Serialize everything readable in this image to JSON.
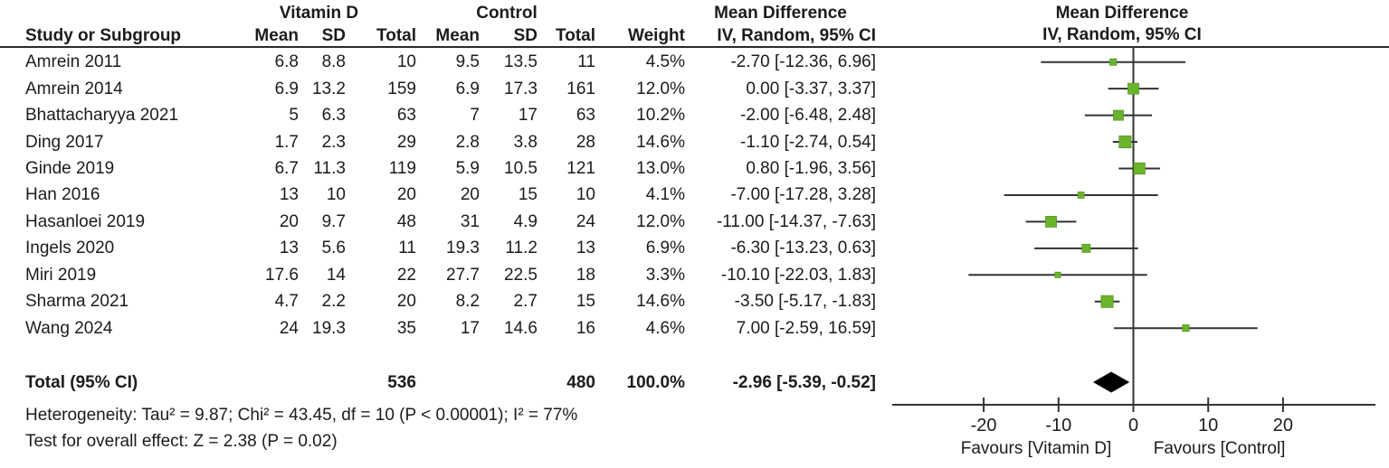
{
  "table": {
    "group_headers": {
      "vitamin_d": "Vitamin D",
      "control": "Control",
      "md_text_col": "Mean Difference",
      "md_plot_col": "Mean Difference"
    },
    "columns": {
      "study": "Study or Subgroup",
      "mean": "Mean",
      "sd": "SD",
      "total": "Total",
      "weight": "Weight",
      "iv_random_text": "IV, Random, 95% CI",
      "iv_random_plot": "IV, Random, 95% CI"
    }
  },
  "chart_data": {
    "type": "forest",
    "effect_measure": "Mean Difference, IV, Random, 95% CI",
    "studies": [
      {
        "name": "Amrein 2011",
        "vd_mean": "6.8",
        "vd_sd": "8.8",
        "vd_total": "10",
        "c_mean": "9.5",
        "c_sd": "13.5",
        "c_total": "11",
        "weight": "4.5%",
        "ci_text": "-2.70 [-12.36, 6.96]",
        "md": -2.7,
        "lo": -12.36,
        "hi": 6.96,
        "w": 4.5
      },
      {
        "name": "Amrein 2014",
        "vd_mean": "6.9",
        "vd_sd": "13.2",
        "vd_total": "159",
        "c_mean": "6.9",
        "c_sd": "17.3",
        "c_total": "161",
        "weight": "12.0%",
        "ci_text": "0.00 [-3.37, 3.37]",
        "md": 0.0,
        "lo": -3.37,
        "hi": 3.37,
        "w": 12.0
      },
      {
        "name": "Bhattacharyya 2021",
        "vd_mean": "5",
        "vd_sd": "6.3",
        "vd_total": "63",
        "c_mean": "7",
        "c_sd": "17",
        "c_total": "63",
        "weight": "10.2%",
        "ci_text": "-2.00 [-6.48, 2.48]",
        "md": -2.0,
        "lo": -6.48,
        "hi": 2.48,
        "w": 10.2
      },
      {
        "name": "Ding 2017",
        "vd_mean": "1.7",
        "vd_sd": "2.3",
        "vd_total": "29",
        "c_mean": "2.8",
        "c_sd": "3.8",
        "c_total": "28",
        "weight": "14.6%",
        "ci_text": "-1.10 [-2.74, 0.54]",
        "md": -1.1,
        "lo": -2.74,
        "hi": 0.54,
        "w": 14.6
      },
      {
        "name": "Ginde 2019",
        "vd_mean": "6.7",
        "vd_sd": "11.3",
        "vd_total": "119",
        "c_mean": "5.9",
        "c_sd": "10.5",
        "c_total": "121",
        "weight": "13.0%",
        "ci_text": "0.80 [-1.96, 3.56]",
        "md": 0.8,
        "lo": -1.96,
        "hi": 3.56,
        "w": 13.0
      },
      {
        "name": "Han 2016",
        "vd_mean": "13",
        "vd_sd": "10",
        "vd_total": "20",
        "c_mean": "20",
        "c_sd": "15",
        "c_total": "10",
        "weight": "4.1%",
        "ci_text": "-7.00 [-17.28, 3.28]",
        "md": -7.0,
        "lo": -17.28,
        "hi": 3.28,
        "w": 4.1
      },
      {
        "name": "Hasanloei 2019",
        "vd_mean": "20",
        "vd_sd": "9.7",
        "vd_total": "48",
        "c_mean": "31",
        "c_sd": "4.9",
        "c_total": "24",
        "weight": "12.0%",
        "ci_text": "-11.00 [-14.37, -7.63]",
        "md": -11.0,
        "lo": -14.37,
        "hi": -7.63,
        "w": 12.0
      },
      {
        "name": "Ingels 2020",
        "vd_mean": "13",
        "vd_sd": "5.6",
        "vd_total": "11",
        "c_mean": "19.3",
        "c_sd": "11.2",
        "c_total": "13",
        "weight": "6.9%",
        "ci_text": "-6.30 [-13.23, 0.63]",
        "md": -6.3,
        "lo": -13.23,
        "hi": 0.63,
        "w": 6.9
      },
      {
        "name": "Miri 2019",
        "vd_mean": "17.6",
        "vd_sd": "14",
        "vd_total": "22",
        "c_mean": "27.7",
        "c_sd": "22.5",
        "c_total": "18",
        "weight": "3.3%",
        "ci_text": "-10.10 [-22.03, 1.83]",
        "md": -10.1,
        "lo": -22.03,
        "hi": 1.83,
        "w": 3.3
      },
      {
        "name": "Sharma 2021",
        "vd_mean": "4.7",
        "vd_sd": "2.2",
        "vd_total": "20",
        "c_mean": "8.2",
        "c_sd": "2.7",
        "c_total": "15",
        "weight": "14.6%",
        "ci_text": "-3.50 [-5.17, -1.83]",
        "md": -3.5,
        "lo": -5.17,
        "hi": -1.83,
        "w": 14.6
      },
      {
        "name": "Wang 2024",
        "vd_mean": "24",
        "vd_sd": "19.3",
        "vd_total": "35",
        "c_mean": "17",
        "c_sd": "14.6",
        "c_total": "16",
        "weight": "4.6%",
        "ci_text": "7.00 [-2.59, 16.59]",
        "md": 7.0,
        "lo": -2.59,
        "hi": 16.59,
        "w": 4.6
      }
    ],
    "total": {
      "label": "Total (95% CI)",
      "vd_total": "536",
      "c_total": "480",
      "weight": "100.0%",
      "ci_text": "-2.96 [-5.39, -0.52]",
      "md": -2.955,
      "lo": -5.39,
      "hi": -0.52
    },
    "heterogeneity": "Heterogeneity: Tau² = 9.87; Chi² = 43.45, df = 10 (P < 0.00001); I² = 77%",
    "overall_effect": "Test for overall effect: Z = 2.38 (P = 0.02)",
    "axis": {
      "ticks": [
        -20,
        -10,
        0,
        10,
        20
      ],
      "min": -32,
      "max": 34,
      "grid": false
    },
    "favours_left": "Favours [Vitamin D]",
    "favours_right": "Favours [Control]",
    "marker_color": "#6ab42c",
    "line_color": "#333333",
    "diamond_color": "#000000"
  }
}
